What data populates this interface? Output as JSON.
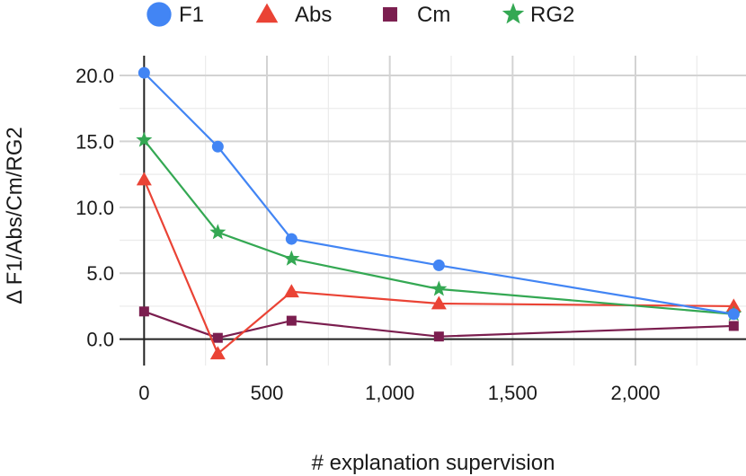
{
  "chart_data": {
    "type": "line",
    "title": "",
    "xlabel": "# explanation supervision",
    "ylabel": "Δ F1/Abs/Cm/RG2",
    "xlim": [
      -100,
      2450
    ],
    "ylim": [
      -2.0,
      21.5
    ],
    "xticks": [
      0,
      500,
      1000,
      1500,
      2000
    ],
    "xtick_labels": [
      "0",
      "500",
      "1,000",
      "1,500",
      "2,000"
    ],
    "yticks": [
      0,
      5,
      10,
      15,
      20
    ],
    "ytick_labels": [
      "0.0",
      "5.0",
      "10.0",
      "15.0",
      "20.0"
    ],
    "grid": true,
    "legend_position": "top",
    "x": [
      0,
      300,
      600,
      1200,
      2400
    ],
    "series": [
      {
        "name": "F1",
        "marker": "circle",
        "color": "#4285f4",
        "values": [
          20.2,
          14.6,
          7.6,
          5.6,
          1.9
        ]
      },
      {
        "name": "Abs",
        "marker": "triangle",
        "color": "#ea4335",
        "values": [
          12.1,
          -1.1,
          3.6,
          2.7,
          2.5
        ]
      },
      {
        "name": "Cm",
        "marker": "square",
        "color": "#7b1e4f",
        "values": [
          2.1,
          0.1,
          1.4,
          0.2,
          1.0
        ]
      },
      {
        "name": "RG2",
        "marker": "star",
        "color": "#34a853",
        "values": [
          15.1,
          8.1,
          6.1,
          3.8,
          1.9
        ]
      }
    ]
  }
}
